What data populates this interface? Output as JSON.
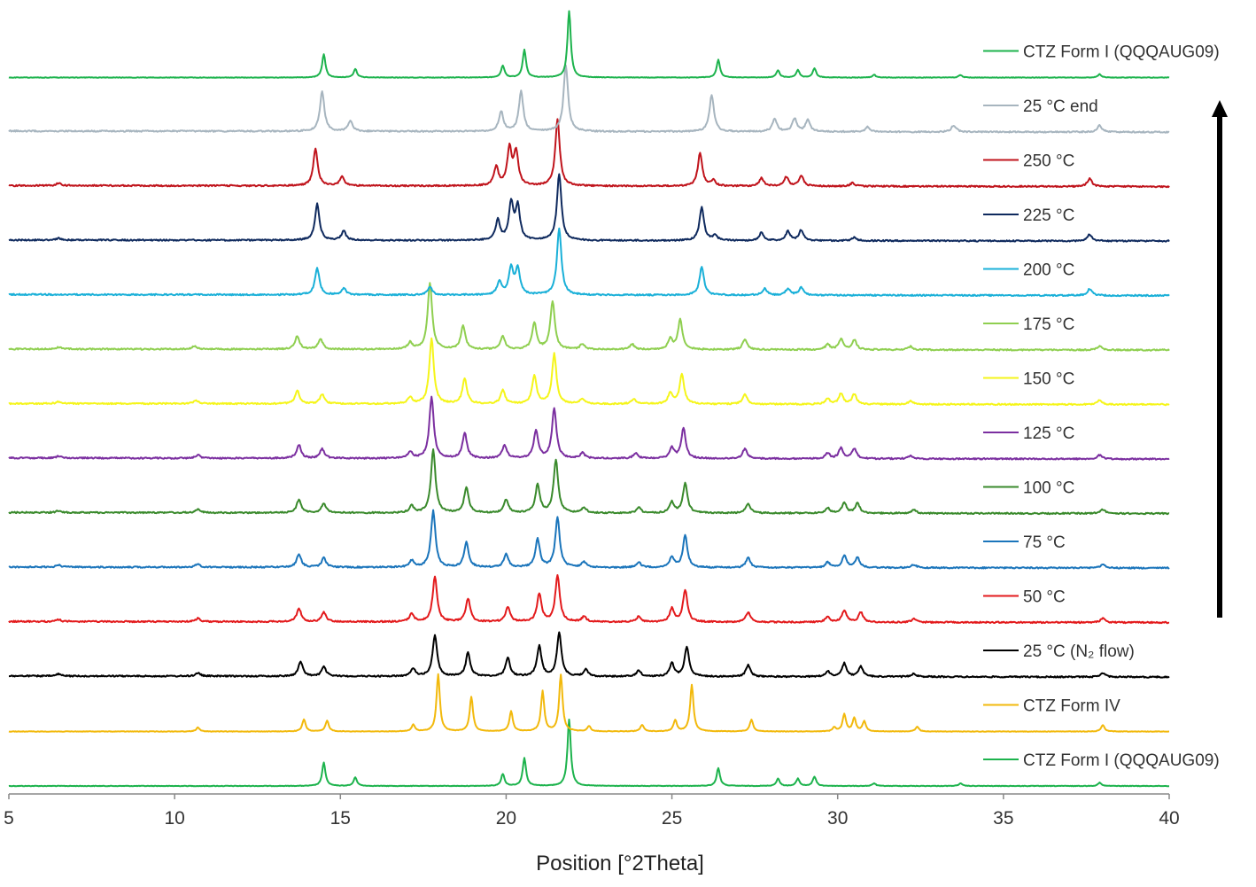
{
  "chart_data": {
    "type": "line",
    "title": "",
    "xlabel": "Position [°2Theta]",
    "ylabel": "",
    "xlim": [
      5,
      40
    ],
    "x_ticks": [
      5,
      10,
      15,
      20,
      25,
      30,
      35,
      40
    ],
    "grid": false,
    "stacked_offset": true,
    "legend_placement": "right, beside each trace",
    "arrow": {
      "direction": "up",
      "color": "#000000"
    },
    "series": [
      {
        "name": "CTZ Form I (QQQAUG09)",
        "color": "#1db34d",
        "peaks": [
          [
            14.5,
            0.35
          ],
          [
            15.45,
            0.13
          ],
          [
            19.9,
            0.18
          ],
          [
            20.55,
            0.42
          ],
          [
            21.9,
            1.0
          ],
          [
            26.4,
            0.27
          ],
          [
            28.2,
            0.11
          ],
          [
            28.8,
            0.11
          ],
          [
            29.3,
            0.14
          ],
          [
            31.1,
            0.04
          ],
          [
            33.7,
            0.04
          ],
          [
            37.9,
            0.05
          ]
        ]
      },
      {
        "name": "CTZ Form IV",
        "color": "#f2b90c",
        "peaks": [
          [
            10.7,
            0.06
          ],
          [
            13.9,
            0.18
          ],
          [
            14.6,
            0.16
          ],
          [
            17.2,
            0.1
          ],
          [
            17.95,
            0.86
          ],
          [
            18.95,
            0.52
          ],
          [
            20.15,
            0.3
          ],
          [
            21.1,
            0.6
          ],
          [
            21.65,
            0.85
          ],
          [
            22.5,
            0.08
          ],
          [
            24.1,
            0.1
          ],
          [
            25.1,
            0.17
          ],
          [
            25.6,
            0.7
          ],
          [
            27.4,
            0.18
          ],
          [
            29.9,
            0.06
          ],
          [
            30.2,
            0.26
          ],
          [
            30.5,
            0.2
          ],
          [
            30.8,
            0.15
          ],
          [
            32.4,
            0.07
          ],
          [
            38.0,
            0.1
          ]
        ]
      },
      {
        "name": "25 °C (N₂ flow)",
        "color": "#000000",
        "peaks": [
          [
            6.5,
            0.03
          ],
          [
            10.7,
            0.05
          ],
          [
            13.8,
            0.22
          ],
          [
            14.5,
            0.14
          ],
          [
            17.2,
            0.12
          ],
          [
            17.85,
            0.62
          ],
          [
            18.85,
            0.35
          ],
          [
            20.05,
            0.28
          ],
          [
            21.0,
            0.45
          ],
          [
            21.6,
            0.65
          ],
          [
            22.4,
            0.1
          ],
          [
            24.0,
            0.09
          ],
          [
            25.0,
            0.2
          ],
          [
            25.45,
            0.45
          ],
          [
            27.3,
            0.17
          ],
          [
            29.7,
            0.08
          ],
          [
            30.2,
            0.2
          ],
          [
            30.7,
            0.15
          ],
          [
            32.3,
            0.05
          ],
          [
            38.0,
            0.06
          ]
        ]
      },
      {
        "name": "50 °C",
        "color": "#e31a1c",
        "peaks": [
          [
            6.5,
            0.03
          ],
          [
            10.7,
            0.05
          ],
          [
            13.75,
            0.2
          ],
          [
            14.5,
            0.14
          ],
          [
            17.15,
            0.12
          ],
          [
            17.85,
            0.68
          ],
          [
            18.85,
            0.35
          ],
          [
            20.05,
            0.22
          ],
          [
            21.0,
            0.42
          ],
          [
            21.55,
            0.7
          ],
          [
            22.35,
            0.08
          ],
          [
            24.0,
            0.08
          ],
          [
            25.0,
            0.2
          ],
          [
            25.4,
            0.48
          ],
          [
            27.3,
            0.15
          ],
          [
            29.7,
            0.08
          ],
          [
            30.2,
            0.18
          ],
          [
            30.7,
            0.15
          ],
          [
            32.3,
            0.05
          ],
          [
            38.0,
            0.06
          ]
        ]
      },
      {
        "name": "75 °C",
        "color": "#1b75bb",
        "peaks": [
          [
            6.5,
            0.03
          ],
          [
            10.7,
            0.05
          ],
          [
            13.75,
            0.2
          ],
          [
            14.5,
            0.14
          ],
          [
            17.15,
            0.1
          ],
          [
            17.8,
            0.85
          ],
          [
            18.8,
            0.38
          ],
          [
            20.0,
            0.2
          ],
          [
            20.95,
            0.42
          ],
          [
            21.55,
            0.75
          ],
          [
            22.35,
            0.08
          ],
          [
            24.0,
            0.08
          ],
          [
            25.0,
            0.16
          ],
          [
            25.4,
            0.48
          ],
          [
            27.3,
            0.15
          ],
          [
            29.7,
            0.08
          ],
          [
            30.2,
            0.18
          ],
          [
            30.6,
            0.15
          ],
          [
            32.3,
            0.05
          ],
          [
            38.0,
            0.06
          ]
        ]
      },
      {
        "name": "100 °C",
        "color": "#3a8a2c",
        "peaks": [
          [
            6.5,
            0.03
          ],
          [
            10.7,
            0.05
          ],
          [
            13.75,
            0.2
          ],
          [
            14.5,
            0.14
          ],
          [
            17.15,
            0.1
          ],
          [
            17.8,
            0.95
          ],
          [
            18.8,
            0.38
          ],
          [
            20.0,
            0.2
          ],
          [
            20.95,
            0.42
          ],
          [
            21.5,
            0.8
          ],
          [
            22.35,
            0.08
          ],
          [
            24.0,
            0.08
          ],
          [
            25.0,
            0.16
          ],
          [
            25.4,
            0.45
          ],
          [
            27.3,
            0.15
          ],
          [
            29.7,
            0.08
          ],
          [
            30.2,
            0.16
          ],
          [
            30.6,
            0.15
          ],
          [
            32.3,
            0.05
          ],
          [
            38.0,
            0.06
          ]
        ]
      },
      {
        "name": "125 °C",
        "color": "#7b2fa0",
        "peaks": [
          [
            6.5,
            0.03
          ],
          [
            10.7,
            0.05
          ],
          [
            13.75,
            0.2
          ],
          [
            14.45,
            0.14
          ],
          [
            17.1,
            0.1
          ],
          [
            17.75,
            0.92
          ],
          [
            18.75,
            0.38
          ],
          [
            19.95,
            0.2
          ],
          [
            20.9,
            0.42
          ],
          [
            21.45,
            0.75
          ],
          [
            22.3,
            0.08
          ],
          [
            23.9,
            0.08
          ],
          [
            25.0,
            0.16
          ],
          [
            25.35,
            0.45
          ],
          [
            27.2,
            0.15
          ],
          [
            29.7,
            0.08
          ],
          [
            30.1,
            0.16
          ],
          [
            30.5,
            0.15
          ],
          [
            32.2,
            0.05
          ],
          [
            37.9,
            0.06
          ]
        ]
      },
      {
        "name": "150 °C",
        "color": "#f5f51a",
        "peaks": [
          [
            6.5,
            0.03
          ],
          [
            10.65,
            0.05
          ],
          [
            13.7,
            0.2
          ],
          [
            14.45,
            0.14
          ],
          [
            17.1,
            0.1
          ],
          [
            17.75,
            0.98
          ],
          [
            18.75,
            0.38
          ],
          [
            19.9,
            0.2
          ],
          [
            20.85,
            0.42
          ],
          [
            21.45,
            0.75
          ],
          [
            22.3,
            0.08
          ],
          [
            23.85,
            0.08
          ],
          [
            24.95,
            0.16
          ],
          [
            25.3,
            0.45
          ],
          [
            27.2,
            0.15
          ],
          [
            29.7,
            0.08
          ],
          [
            30.1,
            0.16
          ],
          [
            30.5,
            0.15
          ],
          [
            32.2,
            0.05
          ],
          [
            37.9,
            0.06
          ]
        ]
      },
      {
        "name": "175 °C",
        "color": "#8fcf50",
        "peaks": [
          [
            6.5,
            0.03
          ],
          [
            10.6,
            0.05
          ],
          [
            13.7,
            0.2
          ],
          [
            14.4,
            0.16
          ],
          [
            17.1,
            0.1
          ],
          [
            17.7,
            1.0
          ],
          [
            18.7,
            0.36
          ],
          [
            19.9,
            0.2
          ],
          [
            20.85,
            0.4
          ],
          [
            21.4,
            0.72
          ],
          [
            22.3,
            0.08
          ],
          [
            23.8,
            0.08
          ],
          [
            24.95,
            0.16
          ],
          [
            25.25,
            0.45
          ],
          [
            27.2,
            0.15
          ],
          [
            29.7,
            0.08
          ],
          [
            30.1,
            0.16
          ],
          [
            30.5,
            0.15
          ],
          [
            32.2,
            0.05
          ],
          [
            37.9,
            0.06
          ]
        ]
      },
      {
        "name": "200 °C",
        "color": "#1ab0d8",
        "peaks": [
          [
            14.3,
            0.4
          ],
          [
            15.1,
            0.1
          ],
          [
            17.7,
            0.12
          ],
          [
            19.8,
            0.2
          ],
          [
            20.15,
            0.4
          ],
          [
            20.35,
            0.38
          ],
          [
            21.6,
            1.0
          ],
          [
            25.9,
            0.42
          ],
          [
            27.8,
            0.1
          ],
          [
            28.5,
            0.1
          ],
          [
            28.9,
            0.12
          ],
          [
            37.6,
            0.1
          ]
        ]
      },
      {
        "name": "225 °C",
        "color": "#0f2a5e",
        "peaks": [
          [
            6.5,
            0.03
          ],
          [
            14.3,
            0.55
          ],
          [
            15.1,
            0.14
          ],
          [
            19.75,
            0.3
          ],
          [
            20.15,
            0.55
          ],
          [
            20.35,
            0.5
          ],
          [
            21.6,
            1.0
          ],
          [
            25.9,
            0.5
          ],
          [
            26.3,
            0.08
          ],
          [
            27.7,
            0.12
          ],
          [
            28.5,
            0.14
          ],
          [
            28.9,
            0.16
          ],
          [
            30.5,
            0.05
          ],
          [
            37.6,
            0.1
          ]
        ]
      },
      {
        "name": "250 °C",
        "color": "#c0141c",
        "peaks": [
          [
            6.5,
            0.04
          ],
          [
            14.25,
            0.55
          ],
          [
            15.05,
            0.14
          ],
          [
            19.7,
            0.28
          ],
          [
            20.1,
            0.55
          ],
          [
            20.3,
            0.5
          ],
          [
            21.55,
            1.0
          ],
          [
            25.85,
            0.5
          ],
          [
            26.25,
            0.08
          ],
          [
            27.7,
            0.12
          ],
          [
            28.45,
            0.14
          ],
          [
            28.9,
            0.16
          ],
          [
            30.45,
            0.05
          ],
          [
            37.6,
            0.12
          ]
        ]
      },
      {
        "name": "25 °C end",
        "color": "#a7b5bf",
        "peaks": [
          [
            14.45,
            0.6
          ],
          [
            15.3,
            0.15
          ],
          [
            19.85,
            0.3
          ],
          [
            20.45,
            0.6
          ],
          [
            21.8,
            1.0
          ],
          [
            26.2,
            0.55
          ],
          [
            28.1,
            0.2
          ],
          [
            28.7,
            0.2
          ],
          [
            29.1,
            0.18
          ],
          [
            30.9,
            0.07
          ],
          [
            33.5,
            0.1
          ],
          [
            37.9,
            0.1
          ]
        ]
      },
      {
        "name": "CTZ Form I (QQQAUG09)",
        "color": "#1db34d",
        "peaks": [
          [
            14.5,
            0.35
          ],
          [
            15.45,
            0.13
          ],
          [
            19.9,
            0.18
          ],
          [
            20.55,
            0.42
          ],
          [
            21.9,
            1.0
          ],
          [
            26.4,
            0.27
          ],
          [
            28.2,
            0.11
          ],
          [
            28.8,
            0.11
          ],
          [
            29.3,
            0.14
          ],
          [
            31.1,
            0.04
          ],
          [
            33.7,
            0.04
          ],
          [
            37.9,
            0.05
          ]
        ]
      }
    ]
  }
}
